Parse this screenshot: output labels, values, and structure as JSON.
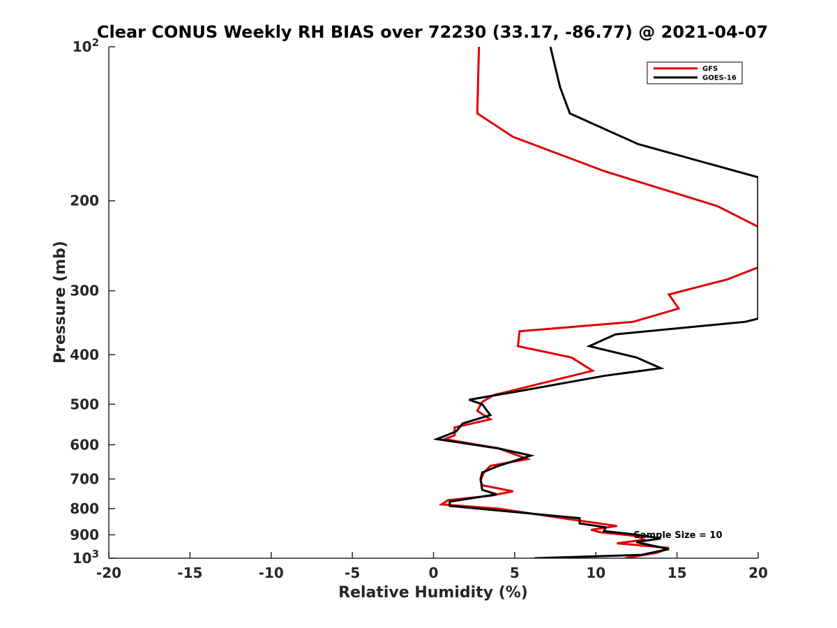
{
  "chart_data": {
    "type": "line",
    "title": "Clear CONUS Weekly RH BIAS over 72230 (33.17, -86.77) @ 2021-04-07",
    "xlabel": "Relative Humidity (%)",
    "ylabel": "Pressure (mb)",
    "xlim": [
      -20,
      20
    ],
    "ylim": [
      100,
      1000
    ],
    "yscale": "log",
    "y_reversed": true,
    "x_ticks": [
      -20,
      -15,
      -10,
      -5,
      0,
      5,
      10,
      15,
      20
    ],
    "x_tick_labels": [
      "-20",
      "-15",
      "-10",
      "-5",
      "0",
      "5",
      "10",
      "15",
      "20"
    ],
    "y_ticks": [
      100,
      200,
      300,
      400,
      500,
      600,
      700,
      800,
      900,
      1000
    ],
    "y_tick_labels": [
      {
        "base": "10",
        "exp": "2"
      },
      {
        "base": "200",
        "exp": ""
      },
      {
        "base": "300",
        "exp": ""
      },
      {
        "base": "400",
        "exp": ""
      },
      {
        "base": "500",
        "exp": ""
      },
      {
        "base": "600",
        "exp": ""
      },
      {
        "base": "700",
        "exp": ""
      },
      {
        "base": "800",
        "exp": ""
      },
      {
        "base": "900",
        "exp": ""
      },
      {
        "base": "10",
        "exp": "3"
      }
    ],
    "grid": false,
    "legend_position": "top-right",
    "annotation": "Sample Size = 10",
    "series": [
      {
        "name": "GFS",
        "color": "#e00000",
        "points": [
          [
            11.8,
            1000
          ],
          [
            13.8,
            975
          ],
          [
            14.5,
            955
          ],
          [
            11.3,
            935
          ],
          [
            13.0,
            920
          ],
          [
            12.5,
            905
          ],
          [
            10.3,
            890
          ],
          [
            9.7,
            880
          ],
          [
            11.3,
            865
          ],
          [
            8.5,
            840
          ],
          [
            4.0,
            800
          ],
          [
            0.5,
            785
          ],
          [
            0.9,
            770
          ],
          [
            3.5,
            755
          ],
          [
            4.9,
            740
          ],
          [
            3.0,
            720
          ],
          [
            2.9,
            705
          ],
          [
            3.1,
            680
          ],
          [
            3.5,
            660
          ],
          [
            5.8,
            640
          ],
          [
            4.0,
            610
          ],
          [
            0.7,
            585
          ],
          [
            1.3,
            575
          ],
          [
            1.3,
            555
          ],
          [
            3.5,
            535
          ],
          [
            2.7,
            515
          ],
          [
            3.0,
            495
          ],
          [
            3.7,
            480
          ],
          [
            9.8,
            430
          ],
          [
            8.5,
            405
          ],
          [
            5.2,
            385
          ],
          [
            5.3,
            360
          ],
          [
            12.3,
            345
          ],
          [
            15.1,
            325
          ],
          [
            14.5,
            305
          ],
          [
            18.1,
            285
          ],
          [
            20.0,
            270
          ],
          [
            20.0,
            225
          ],
          [
            17.5,
            205
          ],
          [
            10.5,
            175
          ],
          [
            4.9,
            150
          ],
          [
            2.7,
            135
          ],
          [
            2.8,
            100
          ]
        ]
      },
      {
        "name": "GOES-16",
        "color": "#000000",
        "points": [
          [
            6.2,
            1000
          ],
          [
            12.8,
            985
          ],
          [
            14.5,
            960
          ],
          [
            13.5,
            945
          ],
          [
            12.5,
            930
          ],
          [
            14.0,
            915
          ],
          [
            12.6,
            900
          ],
          [
            10.5,
            885
          ],
          [
            10.6,
            870
          ],
          [
            9.0,
            855
          ],
          [
            9.0,
            835
          ],
          [
            5.5,
            815
          ],
          [
            1.0,
            790
          ],
          [
            1.0,
            775
          ],
          [
            3.9,
            750
          ],
          [
            3.0,
            735
          ],
          [
            2.9,
            700
          ],
          [
            3.0,
            680
          ],
          [
            4.0,
            660
          ],
          [
            6.0,
            630
          ],
          [
            4.0,
            610
          ],
          [
            0.2,
            585
          ],
          [
            1.4,
            565
          ],
          [
            1.8,
            545
          ],
          [
            3.5,
            525
          ],
          [
            3.0,
            500
          ],
          [
            2.2,
            490
          ],
          [
            5.5,
            470
          ],
          [
            10.5,
            440
          ],
          [
            14.0,
            425
          ],
          [
            12.5,
            405
          ],
          [
            9.6,
            385
          ],
          [
            11.2,
            365
          ],
          [
            19.2,
            345
          ],
          [
            20.0,
            340
          ],
          [
            20.0,
            180
          ],
          [
            12.6,
            155
          ],
          [
            8.4,
            135
          ],
          [
            7.8,
            120
          ],
          [
            7.2,
            100
          ]
        ]
      }
    ]
  }
}
